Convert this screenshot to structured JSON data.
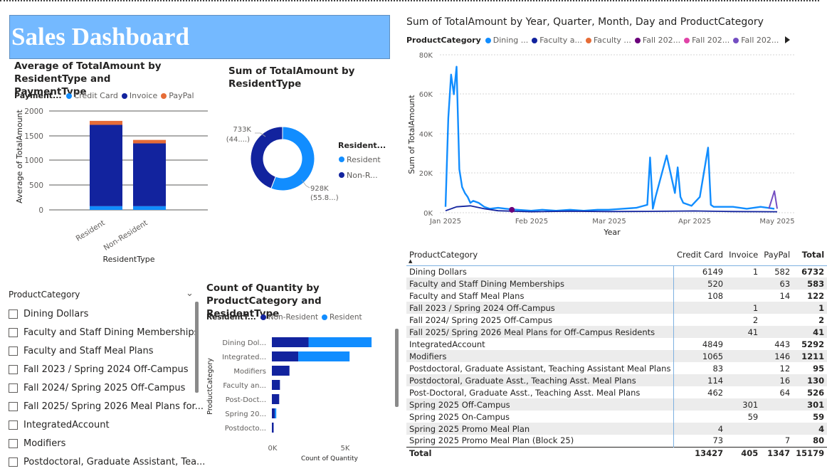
{
  "dashboard": {
    "title": "Sales Dashboard"
  },
  "avg_chart": {
    "title": "Average of TotalAmount by ResidentType and PaymentType",
    "legend_title": "Payment...",
    "legend": [
      "Credit Card",
      "Invoice",
      "PayPal"
    ],
    "xlabel": "ResidentType",
    "ylabel": "Average of TotalAmount",
    "y_ticks": [
      "2000",
      "1500",
      "1000",
      "500",
      "0"
    ],
    "categories": [
      "Resident",
      "Non-Resident"
    ]
  },
  "donut_chart": {
    "title": "Sum of TotalAmount by ResidentType",
    "legend_title": "Resident...",
    "legend": [
      "Resident",
      "Non-R..."
    ],
    "label_nonres_value": "733K",
    "label_nonres_pct": "(44....)",
    "label_res_value": "928K",
    "label_res_pct": "(55.8...)"
  },
  "line_chart": {
    "title": "Sum of TotalAmount by Year, Quarter, Month, Day and ProductCategory",
    "legend_title": "ProductCategory",
    "legend": [
      "Dining ...",
      "Faculty a...",
      "Faculty ...",
      "Fall 202...",
      "Fall 202...",
      "Fall 202..."
    ],
    "ylabel": "Sum of TotalAmount",
    "xlabel": "Year",
    "y_ticks": [
      "80K",
      "60K",
      "40K",
      "20K",
      "0K"
    ],
    "x_ticks": [
      "Jan 2025",
      "Feb 2025",
      "Mar 2025",
      "Apr 2025",
      "May 2025"
    ]
  },
  "slicer": {
    "title": "ProductCategory",
    "items": [
      "Dining Dollars",
      "Faculty and Staff Dining Memberships",
      "Faculty and Staff Meal Plans",
      "Fall 2023 / Spring 2024 Off-Campus",
      "Fall 2024/ Spring 2025 Off-Campus",
      "Fall 2025/ Spring 2026 Meal Plans for...",
      "IntegratedAccount",
      "Modifiers",
      "Postdoctoral, Graduate Assistant, Tea..."
    ]
  },
  "qty_chart": {
    "title": "Count of Quantity by ProductCategory and ResidentType",
    "legend_title": "ResidentT...",
    "legend": [
      "Non-Resident",
      "Resident"
    ],
    "ylabel": "ProductCategory",
    "xlabel": "Count of Quantity",
    "x_ticks": [
      "0K",
      "5K"
    ],
    "categories": [
      "Dining Dol...",
      "Integrated...",
      "Modifiers",
      "Faculty an...",
      "Post-Doct...",
      "Spring 20...",
      "Postdocto..."
    ]
  },
  "matrix": {
    "headers": [
      "ProductCategory",
      "Credit Card",
      "Invoice",
      "PayPal",
      "Total"
    ],
    "rows": [
      [
        "Dining Dollars",
        "6149",
        "1",
        "582",
        "6732"
      ],
      [
        "Faculty and Staff Dining Memberships",
        "520",
        "",
        "63",
        "583"
      ],
      [
        "Faculty and Staff Meal Plans",
        "108",
        "",
        "14",
        "122"
      ],
      [
        "Fall 2023 / Spring 2024 Off-Campus",
        "",
        "1",
        "",
        "1"
      ],
      [
        "Fall 2024/ Spring 2025 Off-Campus",
        "",
        "2",
        "",
        "2"
      ],
      [
        "Fall 2025/ Spring 2026 Meal Plans for Off-Campus Residents",
        "",
        "41",
        "",
        "41"
      ],
      [
        "IntegratedAccount",
        "4849",
        "",
        "443",
        "5292"
      ],
      [
        "Modifiers",
        "1065",
        "",
        "146",
        "1211"
      ],
      [
        "Postdoctoral, Graduate Assistant, Teaching Assistant Meal Plans",
        "83",
        "",
        "12",
        "95"
      ],
      [
        "Postdoctoral, Graduate Asst., Teaching Asst. Meal Plans",
        "114",
        "",
        "16",
        "130"
      ],
      [
        "Post-Doctoral, Graduate Asst., Teaching Asst. Meal Plans",
        "462",
        "",
        "64",
        "526"
      ],
      [
        "Spring 2025 Off-Campus",
        "",
        "301",
        "",
        "301"
      ],
      [
        "Spring 2025 On-Campus",
        "",
        "59",
        "",
        "59"
      ],
      [
        "Spring 2025 Promo Meal Plan",
        "4",
        "",
        "",
        "4"
      ],
      [
        "Spring 2025 Promo Meal Plan (Block 25)",
        "73",
        "",
        "7",
        "80"
      ]
    ],
    "total": [
      "Total",
      "13427",
      "405",
      "1347",
      "15179"
    ]
  },
  "colors": {
    "banner": "#74b9ff",
    "credit_card": "#118dff",
    "invoice": "#12239e",
    "paypal": "#e66c37",
    "resident": "#118dff",
    "non_resident": "#12239e",
    "fall_a": "#6b007b",
    "fall_b": "#e044a7",
    "fall_c": "#744ec2"
  },
  "chart_data": [
    {
      "type": "bar",
      "stacked": true,
      "title": "Average of TotalAmount by ResidentType and PaymentType",
      "categories": [
        "Resident",
        "Non-Resident"
      ],
      "series": [
        {
          "name": "Credit Card",
          "values": [
            75,
            75
          ]
        },
        {
          "name": "Invoice",
          "values": [
            1645,
            1270
          ]
        },
        {
          "name": "PayPal",
          "values": [
            80,
            70
          ]
        }
      ],
      "xlabel": "ResidentType",
      "ylabel": "Average of TotalAmount",
      "ylim": [
        0,
        2000
      ]
    },
    {
      "type": "pie",
      "donut": true,
      "title": "Sum of TotalAmount by ResidentType",
      "categories": [
        "Resident",
        "Non-Resident"
      ],
      "values": [
        928,
        733
      ],
      "unit": "K"
    },
    {
      "type": "line",
      "title": "Sum of TotalAmount by Year, Quarter, Month, Day and ProductCategory",
      "xlabel": "Year",
      "ylabel": "Sum of TotalAmount",
      "ylim": [
        0,
        80000
      ],
      "xlim": [
        "2025-01-01",
        "2025-05-01"
      ],
      "series": [
        {
          "name": "Dining ...",
          "x": [
            "2025-01-01",
            "2025-01-02",
            "2025-01-03",
            "2025-01-04",
            "2025-01-05",
            "2025-01-06",
            "2025-01-07",
            "2025-01-08",
            "2025-01-09",
            "2025-01-10",
            "2025-01-11",
            "2025-01-13",
            "2025-01-15",
            "2025-01-17",
            "2025-01-20",
            "2025-01-23",
            "2025-01-27",
            "2025-02-01",
            "2025-02-05",
            "2025-02-10",
            "2025-02-15",
            "2025-02-20",
            "2025-02-25",
            "2025-03-01",
            "2025-03-06",
            "2025-03-11",
            "2025-03-15",
            "2025-03-16",
            "2025-03-17",
            "2025-03-18",
            "2025-03-22",
            "2025-03-25",
            "2025-03-26",
            "2025-03-27",
            "2025-03-28",
            "2025-03-31",
            "2025-04-03",
            "2025-04-06",
            "2025-04-07",
            "2025-04-08",
            "2025-04-10",
            "2025-04-15",
            "2025-04-20",
            "2025-04-25",
            "2025-04-30"
          ],
          "y": [
            3000,
            48000,
            70000,
            60000,
            74000,
            22000,
            13000,
            10000,
            8000,
            5000,
            6000,
            5000,
            3000,
            2000,
            2500,
            2000,
            1500,
            1000,
            1500,
            1000,
            1500,
            1000,
            1500,
            1500,
            2000,
            2500,
            4000,
            28000,
            2000,
            8000,
            29000,
            10000,
            23000,
            8000,
            5000,
            3500,
            8000,
            33000,
            4000,
            3000,
            3000,
            3000,
            2000,
            3000,
            2000
          ]
        },
        {
          "name": "Faculty a...",
          "x": [
            "2025-01-01",
            "2025-01-05",
            "2025-01-10",
            "2025-01-15",
            "2025-01-20",
            "2025-02-01",
            "2025-02-15",
            "2025-03-01",
            "2025-03-15",
            "2025-04-01",
            "2025-04-15",
            "2025-05-01"
          ],
          "y": [
            1000,
            3000,
            3500,
            2000,
            1000,
            500,
            800,
            600,
            700,
            900,
            600,
            500
          ]
        },
        {
          "name": "Fall 202...",
          "x": [
            "2025-01-25"
          ],
          "y": [
            1500
          ]
        },
        {
          "name": "Fall 202...",
          "x": [
            "2025-04-28",
            "2025-04-30",
            "2025-05-01"
          ],
          "y": [
            2000,
            11000,
            2000
          ]
        }
      ]
    },
    {
      "type": "bar",
      "orientation": "horizontal",
      "stacked": true,
      "title": "Count of Quantity by ProductCategory and ResidentType",
      "categories": [
        "Dining Dol...",
        "Integrated...",
        "Modifiers",
        "Faculty an...",
        "Post-Doct...",
        "Spring 20...",
        "Postdocto..."
      ],
      "series": [
        {
          "name": "Non-Resident",
          "values": [
            2500,
            1800,
            1200,
            550,
            500,
            200,
            120
          ]
        },
        {
          "name": "Resident",
          "values": [
            4300,
            3500,
            0,
            0,
            0,
            100,
            0
          ]
        }
      ],
      "xlabel": "Count of Quantity",
      "ylabel": "ProductCategory"
    }
  ]
}
